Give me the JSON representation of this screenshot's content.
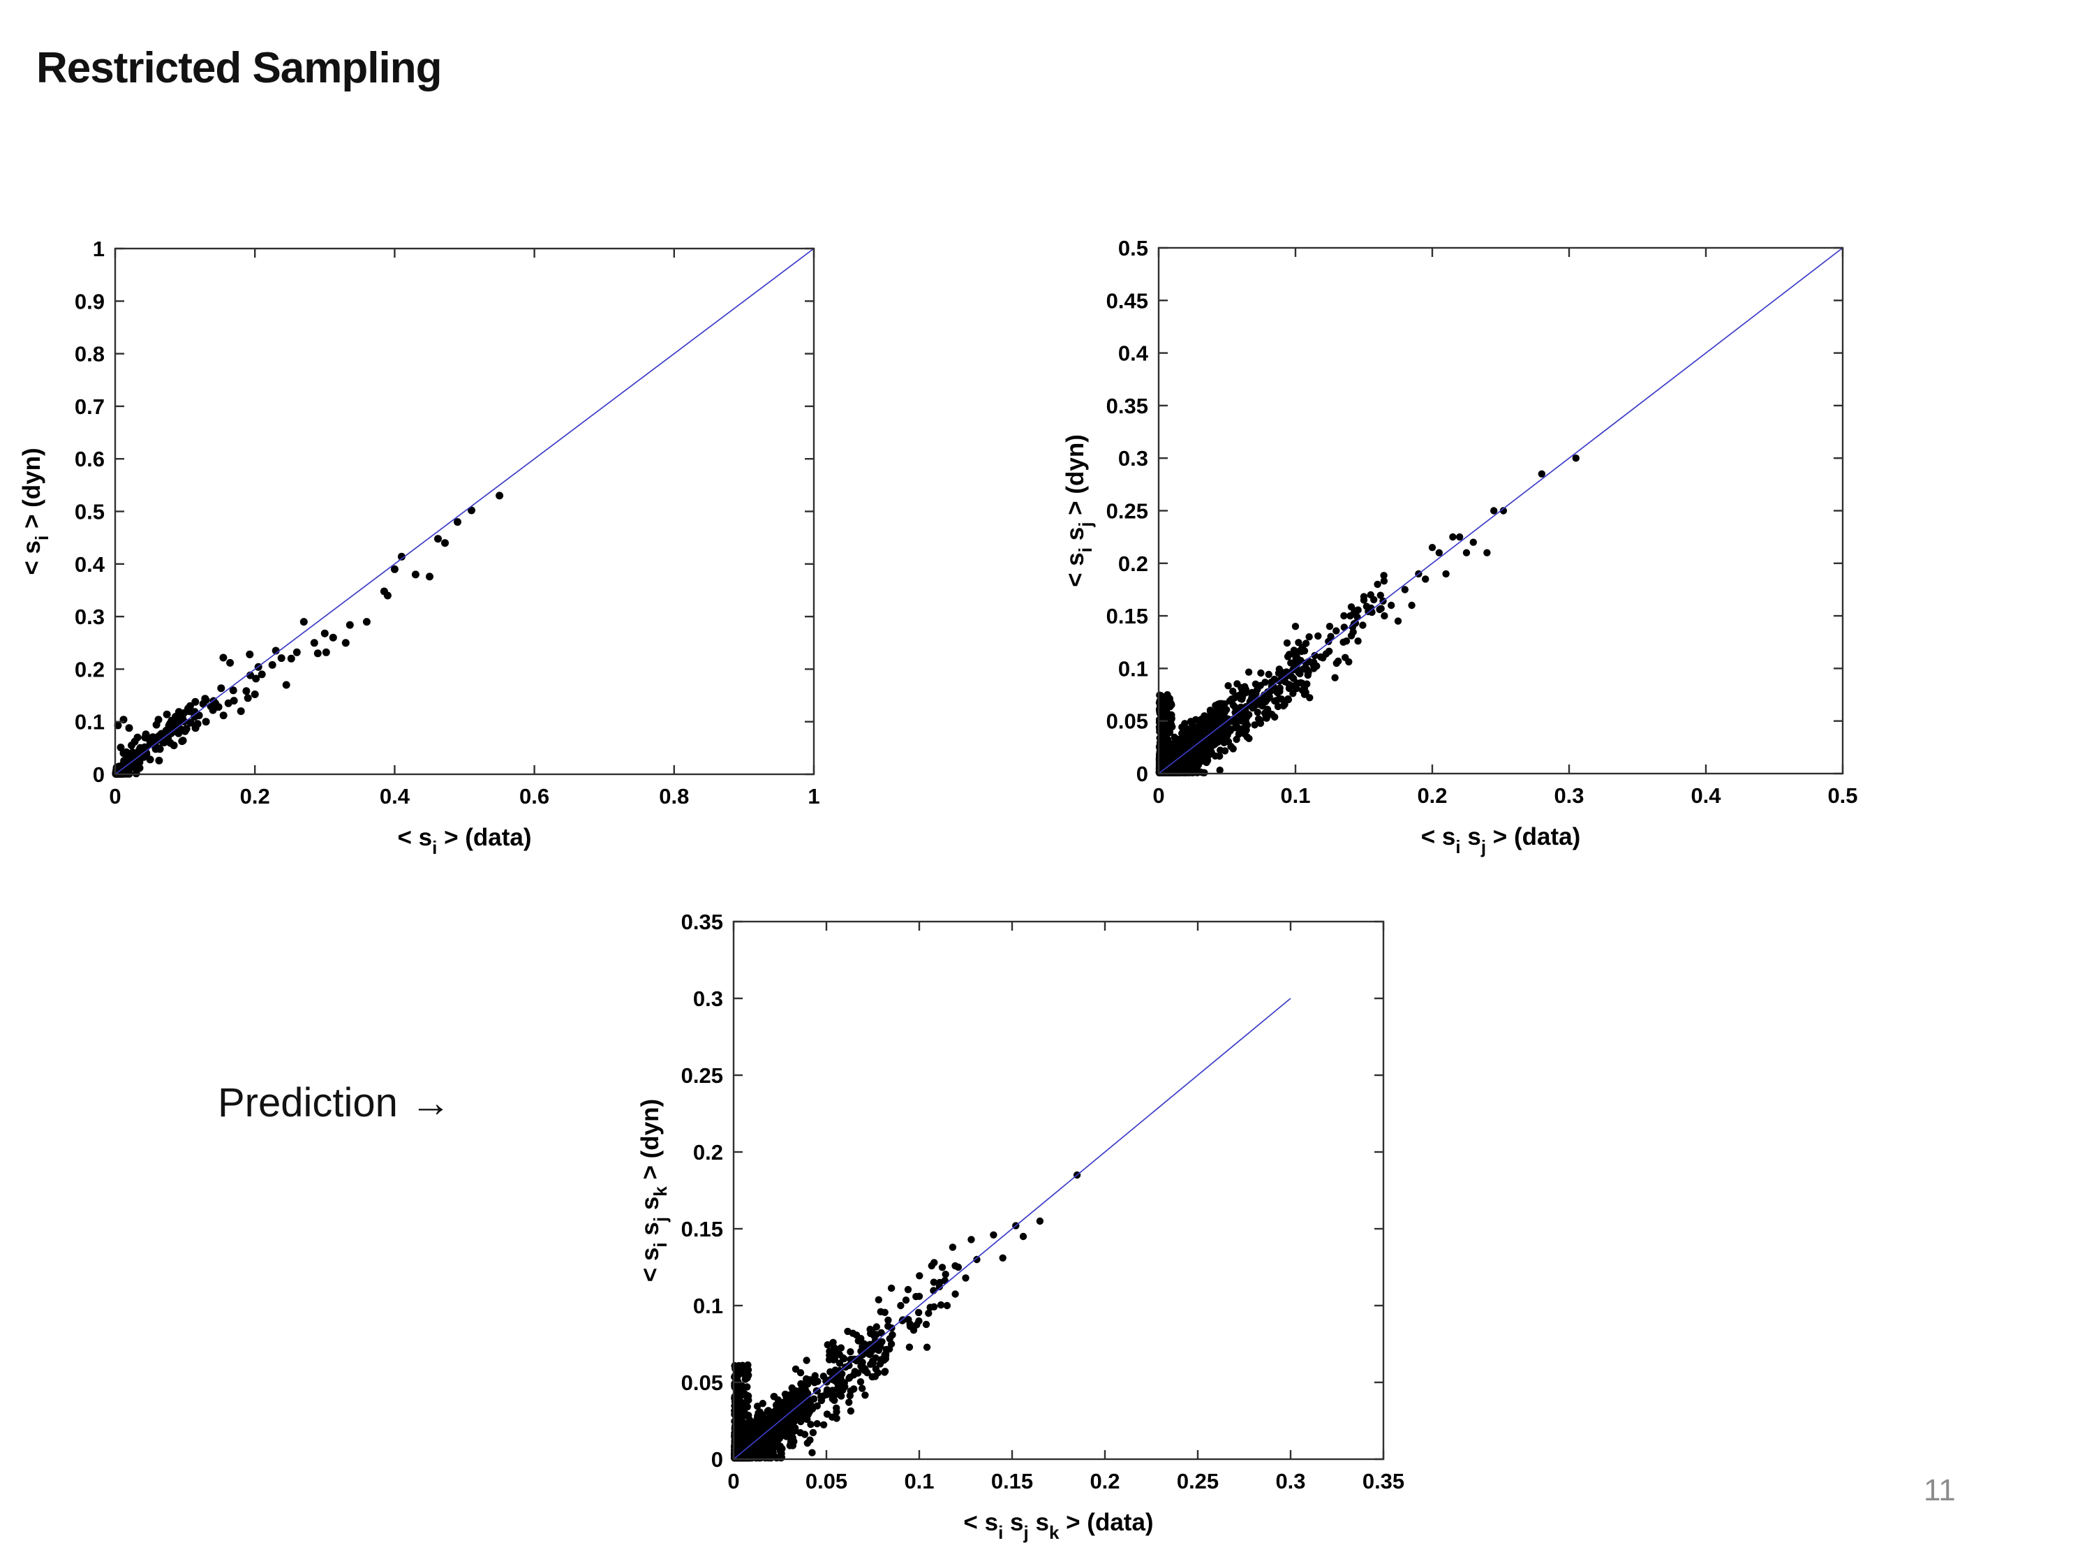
{
  "title": "Restricted Sampling",
  "labels": {
    "prediction": "Prediction",
    "prediction_arrow": "→"
  },
  "page_number": "11",
  "colors": {
    "line": "#3c3cc8",
    "marker": "#000000",
    "axis": "#303030",
    "text": "#000000",
    "page_number": "#8c8c8c"
  },
  "chart_data": [
    {
      "id": "first-moment",
      "type": "scatter",
      "xlabel_parts": [
        {
          "t": "< s"
        },
        {
          "t": "i",
          "sub": true
        },
        {
          "t": " > (data)"
        }
      ],
      "ylabel_parts": [
        {
          "t": "< s"
        },
        {
          "t": "i",
          "sub": true
        },
        {
          "t": " > (dyn)"
        }
      ],
      "xlim": [
        0,
        1
      ],
      "ylim": [
        0,
        1
      ],
      "xticks": [
        0,
        0.2,
        0.4,
        0.6,
        0.8,
        1
      ],
      "xtick_labels": [
        "0",
        "0.2",
        "0.4",
        "0.6",
        "0.8",
        "1"
      ],
      "yticks": [
        0,
        0.1,
        0.2,
        0.3,
        0.4,
        0.5,
        0.6,
        0.7,
        0.8,
        0.9,
        1
      ],
      "ytick_labels": [
        "0",
        "0.1",
        "0.2",
        "0.3",
        "0.4",
        "0.5",
        "0.6",
        "0.7",
        "0.8",
        "0.9",
        "1"
      ],
      "identity_line": {
        "from": [
          0,
          0
        ],
        "to": [
          1,
          1
        ]
      },
      "grid": false,
      "legend": null,
      "marker_radius": 5.5,
      "seed": 11,
      "clusters": [
        {
          "n": 120,
          "mode": "diag",
          "x": [
            0.001,
            0.045
          ],
          "xpow": 1.8,
          "spread": 0.007,
          "bias": 0
        },
        {
          "n": 55,
          "mode": "diag",
          "x": [
            0.012,
            0.1
          ],
          "xpow": 1.4,
          "spread": 0.016,
          "bias": 0.002
        },
        {
          "n": 34,
          "mode": "diag",
          "x": [
            0.07,
            0.22
          ],
          "xpow": 1.1,
          "spread": 0.022,
          "bias": 0
        }
      ],
      "points": [
        [
          0.004,
          0.093
        ],
        [
          0.012,
          0.104
        ],
        [
          0.02,
          0.088
        ],
        [
          0.028,
          0.062
        ],
        [
          0.008,
          0.051
        ],
        [
          0.016,
          0.042
        ],
        [
          0.036,
          0.05
        ],
        [
          0.044,
          0.076
        ],
        [
          0.05,
          0.057
        ],
        [
          0.058,
          0.048
        ],
        [
          0.035,
          0.012
        ],
        [
          0.05,
          0.028
        ],
        [
          0.064,
          0.048
        ],
        [
          0.068,
          0.062
        ],
        [
          0.074,
          0.114
        ],
        [
          0.08,
          0.078
        ],
        [
          0.084,
          0.055
        ],
        [
          0.09,
          0.1
        ],
        [
          0.095,
          0.115
        ],
        [
          0.1,
          0.082
        ],
        [
          0.108,
          0.098
        ],
        [
          0.115,
          0.088
        ],
        [
          0.12,
          0.112
        ],
        [
          0.126,
          0.134
        ],
        [
          0.13,
          0.1
        ],
        [
          0.14,
          0.122
        ],
        [
          0.148,
          0.128
        ],
        [
          0.155,
          0.112
        ],
        [
          0.162,
          0.135
        ],
        [
          0.17,
          0.14
        ],
        [
          0.18,
          0.12
        ],
        [
          0.19,
          0.145
        ],
        [
          0.2,
          0.152
        ],
        [
          0.21,
          0.19
        ],
        [
          0.225,
          0.208
        ],
        [
          0.23,
          0.235
        ],
        [
          0.238,
          0.221
        ],
        [
          0.245,
          0.17
        ],
        [
          0.252,
          0.22
        ],
        [
          0.26,
          0.232
        ],
        [
          0.27,
          0.29
        ],
        [
          0.285,
          0.25
        ],
        [
          0.29,
          0.23
        ],
        [
          0.3,
          0.268
        ],
        [
          0.302,
          0.232
        ],
        [
          0.312,
          0.26
        ],
        [
          0.33,
          0.25
        ],
        [
          0.336,
          0.284
        ],
        [
          0.36,
          0.29
        ],
        [
          0.385,
          0.348
        ],
        [
          0.39,
          0.34
        ],
        [
          0.4,
          0.39
        ],
        [
          0.41,
          0.414
        ],
        [
          0.43,
          0.38
        ],
        [
          0.45,
          0.376
        ],
        [
          0.462,
          0.448
        ],
        [
          0.472,
          0.44
        ],
        [
          0.49,
          0.48
        ],
        [
          0.51,
          0.502
        ],
        [
          0.55,
          0.53
        ]
      ]
    },
    {
      "id": "second-moment",
      "type": "scatter",
      "xlabel_parts": [
        {
          "t": "< s"
        },
        {
          "t": "i",
          "sub": true
        },
        {
          "t": " s"
        },
        {
          "t": "j",
          "sub": true
        },
        {
          "t": " > (data)"
        }
      ],
      "ylabel_parts": [
        {
          "t": "< s"
        },
        {
          "t": "i",
          "sub": true
        },
        {
          "t": " s"
        },
        {
          "t": "j",
          "sub": true
        },
        {
          "t": " > (dyn)"
        }
      ],
      "xlim": [
        0,
        0.5
      ],
      "ylim": [
        0,
        0.5
      ],
      "xticks": [
        0,
        0.1,
        0.2,
        0.3,
        0.4,
        0.5
      ],
      "xtick_labels": [
        "0",
        "0.1",
        "0.2",
        "0.3",
        "0.4",
        "0.5"
      ],
      "yticks": [
        0,
        0.05,
        0.1,
        0.15,
        0.2,
        0.25,
        0.3,
        0.35,
        0.4,
        0.45,
        0.5
      ],
      "ytick_labels": [
        "0",
        "0.05",
        "0.1",
        "0.15",
        "0.2",
        "0.25",
        "0.3",
        "0.35",
        "0.4",
        "0.45",
        "0.5"
      ],
      "identity_line": {
        "from": [
          0,
          0
        ],
        "to": [
          0.5,
          0.5
        ]
      },
      "grid": false,
      "legend": null,
      "marker_radius": 5.2,
      "seed": 23,
      "clusters": [
        {
          "n": 780,
          "mode": "diag",
          "x": [
            0.0005,
            0.05
          ],
          "xpow": 2.1,
          "spread": 0.01,
          "bias": -0.001
        },
        {
          "n": 240,
          "mode": "edge",
          "x": [
            0.0005,
            0.01
          ],
          "xpow": 1.7,
          "y": [
            0.002,
            0.075
          ],
          "ypow": 2.3
        },
        {
          "n": 330,
          "mode": "diag",
          "x": [
            0.015,
            0.11
          ],
          "xpow": 1.7,
          "spread": 0.014,
          "bias": -0.004
        },
        {
          "n": 95,
          "mode": "diag",
          "x": [
            0.06,
            0.165
          ],
          "xpow": 1.25,
          "spread": 0.016,
          "bias": -0.002
        }
      ],
      "points": [
        [
          0.002,
          0.073
        ],
        [
          0.004,
          0.068
        ],
        [
          0.003,
          0.062
        ],
        [
          0.006,
          0.071
        ],
        [
          0.1,
          0.14
        ],
        [
          0.105,
          0.12
        ],
        [
          0.11,
          0.13
        ],
        [
          0.12,
          0.11
        ],
        [
          0.125,
          0.14
        ],
        [
          0.13,
          0.105
        ],
        [
          0.135,
          0.125
        ],
        [
          0.14,
          0.15
        ],
        [
          0.145,
          0.155
        ],
        [
          0.15,
          0.165
        ],
        [
          0.155,
          0.17
        ],
        [
          0.16,
          0.18
        ],
        [
          0.165,
          0.15
        ],
        [
          0.17,
          0.16
        ],
        [
          0.175,
          0.145
        ],
        [
          0.18,
          0.175
        ],
        [
          0.185,
          0.16
        ],
        [
          0.19,
          0.19
        ],
        [
          0.195,
          0.185
        ],
        [
          0.2,
          0.215
        ],
        [
          0.205,
          0.21
        ],
        [
          0.21,
          0.19
        ],
        [
          0.215,
          0.225
        ],
        [
          0.22,
          0.225
        ],
        [
          0.225,
          0.21
        ],
        [
          0.23,
          0.22
        ],
        [
          0.24,
          0.21
        ],
        [
          0.245,
          0.25
        ],
        [
          0.252,
          0.25
        ],
        [
          0.28,
          0.285
        ],
        [
          0.305,
          0.3
        ]
      ]
    },
    {
      "id": "third-moment",
      "type": "scatter",
      "xlabel_parts": [
        {
          "t": "< s"
        },
        {
          "t": "i",
          "sub": true
        },
        {
          "t": " s"
        },
        {
          "t": "j",
          "sub": true
        },
        {
          "t": " s"
        },
        {
          "t": "k",
          "sub": true
        },
        {
          "t": " > (data)"
        }
      ],
      "ylabel_parts": [
        {
          "t": "< s"
        },
        {
          "t": "i",
          "sub": true
        },
        {
          "t": " s"
        },
        {
          "t": "j",
          "sub": true
        },
        {
          "t": " s"
        },
        {
          "t": "k",
          "sub": true
        },
        {
          "t": " > (dyn)"
        }
      ],
      "xlim": [
        0,
        0.35
      ],
      "ylim": [
        0,
        0.35
      ],
      "xticks": [
        0,
        0.05,
        0.1,
        0.15,
        0.2,
        0.25,
        0.3,
        0.35
      ],
      "xtick_labels": [
        "0",
        "0.05",
        "0.1",
        "0.15",
        "0.2",
        "0.25",
        "0.3",
        "0.35"
      ],
      "yticks": [
        0,
        0.05,
        0.1,
        0.15,
        0.2,
        0.25,
        0.3,
        0.35
      ],
      "ytick_labels": [
        "0",
        "0.05",
        "0.1",
        "0.15",
        "0.2",
        "0.25",
        "0.3",
        "0.35"
      ],
      "identity_line": {
        "from": [
          0,
          0
        ],
        "to": [
          0.3,
          0.3
        ]
      },
      "grid": false,
      "legend": null,
      "marker_radius": 5.2,
      "seed": 37,
      "clusters": [
        {
          "n": 880,
          "mode": "diag",
          "x": [
            0.0005,
            0.04
          ],
          "xpow": 2.2,
          "spread": 0.007,
          "bias": -0.001
        },
        {
          "n": 260,
          "mode": "edge",
          "x": [
            0.0005,
            0.008
          ],
          "xpow": 1.6,
          "y": [
            0.002,
            0.062
          ],
          "ypow": 2.1
        },
        {
          "n": 310,
          "mode": "diag",
          "x": [
            0.012,
            0.085
          ],
          "xpow": 1.8,
          "spread": 0.011,
          "bias": -0.005
        },
        {
          "n": 85,
          "mode": "diag",
          "x": [
            0.05,
            0.12
          ],
          "xpow": 1.2,
          "spread": 0.011,
          "bias": -0.002
        }
      ],
      "points": [
        [
          0.185,
          0.185
        ],
        [
          0.165,
          0.155
        ],
        [
          0.152,
          0.152
        ],
        [
          0.156,
          0.145
        ],
        [
          0.145,
          0.131
        ],
        [
          0.14,
          0.146
        ],
        [
          0.131,
          0.13
        ],
        [
          0.125,
          0.118
        ],
        [
          0.121,
          0.125
        ],
        [
          0.115,
          0.1
        ],
        [
          0.111,
          0.115
        ],
        [
          0.105,
          0.095
        ],
        [
          0.1,
          0.106
        ],
        [
          0.118,
          0.138
        ],
        [
          0.128,
          0.143
        ],
        [
          0.108,
          0.128
        ],
        [
          0.095,
          0.088
        ],
        [
          0.09,
          0.1
        ],
        [
          0.085,
          0.075
        ]
      ]
    }
  ]
}
